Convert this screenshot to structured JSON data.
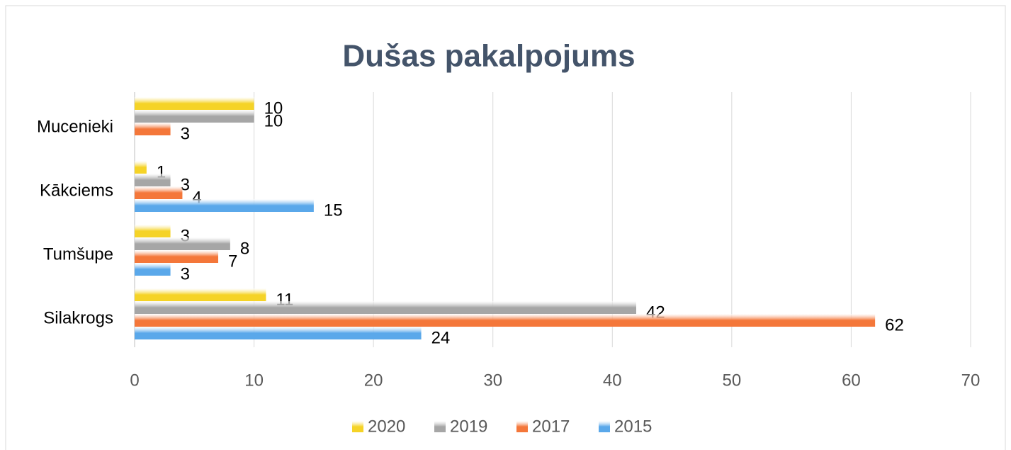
{
  "chart_data": {
    "type": "hbar",
    "title": "Dušas pakalpojums",
    "categories": [
      "Silakrogs",
      "Tumšupe",
      "Kākciems",
      "Mucenieki"
    ],
    "series": [
      {
        "name": "2020",
        "color": "#f5d327",
        "values": [
          11,
          3,
          1,
          10
        ]
      },
      {
        "name": "2019",
        "color": "#a6a6a6",
        "values": [
          42,
          8,
          3,
          10
        ]
      },
      {
        "name": "2017",
        "color": "#f4773a",
        "values": [
          62,
          7,
          4,
          3
        ]
      },
      {
        "name": "2015",
        "color": "#5aa8ea",
        "values": [
          24,
          3,
          15,
          null
        ]
      }
    ],
    "xlim": [
      0,
      70
    ],
    "xticks": [
      0,
      10,
      20,
      30,
      40,
      50,
      60,
      70
    ],
    "grid": true,
    "legend": "bottom"
  }
}
